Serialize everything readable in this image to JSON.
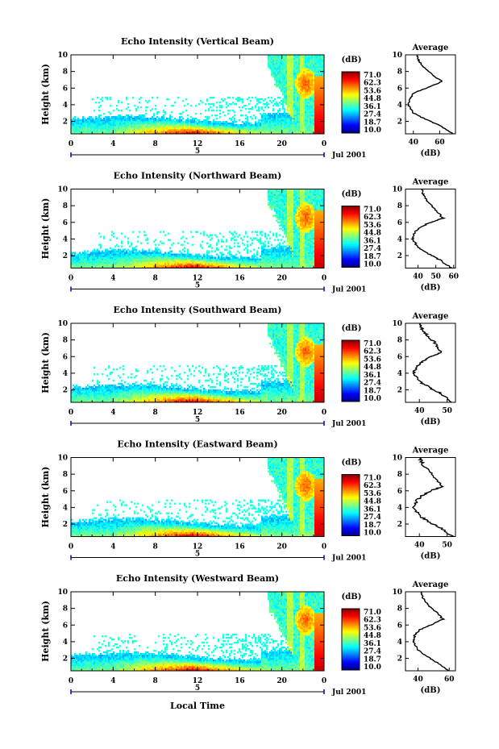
{
  "figure": {
    "x_axis_title": "Local Time",
    "date_label": "Jul 2001",
    "date_marker": "5",
    "colorbar_unit": "(dB)",
    "colorbar_levels": [
      "71.0",
      "62.3",
      "53.6",
      "44.8",
      "36.1",
      "27.4",
      "18.7",
      "10.0"
    ],
    "colorbar_colors": [
      "#e0100a",
      "#ff6a10",
      "#ffcc30",
      "#a8f040",
      "#40e0e0",
      "#30a0ff",
      "#2050e0",
      "#3020a0"
    ],
    "average_title": "Average",
    "average_xlabel": "(dB)",
    "echo_color_scale": "jet",
    "missing_data_color": "#ffffff"
  },
  "chart_data": [
    {
      "type": "heatmap",
      "title": "Echo Intensity (Vertical Beam)",
      "ylabel": "Height (km)",
      "xticks": [
        "0",
        "4",
        "8",
        "12",
        "16",
        "20",
        "0"
      ],
      "yticks": [
        "2",
        "4",
        "6",
        "8",
        "10"
      ],
      "xlim": [
        0,
        24
      ],
      "ylim": [
        0.5,
        10
      ],
      "average_profile": {
        "xticks": [
          "40",
          "60"
        ],
        "yticks": [
          "2",
          "4",
          "6",
          "8",
          "10"
        ],
        "xlim": [
          34,
          72
        ],
        "ylim": [
          0.5,
          10
        ],
        "intensity_db": [
          70,
          60,
          50,
          40,
          36,
          38,
          40,
          50,
          62,
          55,
          48,
          44,
          43
        ],
        "height_km": [
          0.5,
          1.5,
          2.2,
          3.0,
          4.0,
          4.8,
          5.4,
          6.0,
          6.8,
          7.5,
          8.5,
          9.3,
          10
        ]
      }
    },
    {
      "type": "heatmap",
      "title": "Echo Intensity (Northward Beam)",
      "ylabel": "Height (km)",
      "xticks": [
        "0",
        "4",
        "8",
        "12",
        "16",
        "20",
        "0"
      ],
      "yticks": [
        "2",
        "4",
        "6",
        "8",
        "10"
      ],
      "xlim": [
        0,
        24
      ],
      "ylim": [
        0.5,
        10
      ],
      "average_profile": {
        "xticks": [
          "40",
          "50",
          "60"
        ],
        "yticks": [
          "2",
          "4",
          "6",
          "8",
          "10"
        ],
        "xlim": [
          33,
          61
        ],
        "ylim": [
          0.5,
          10
        ],
        "intensity_db": [
          59,
          52,
          46,
          40,
          37,
          38,
          41,
          47,
          54,
          50,
          45,
          43,
          42
        ],
        "height_km": [
          0.5,
          1.5,
          2.2,
          3.0,
          4.0,
          4.8,
          5.4,
          6.0,
          6.5,
          7.5,
          8.5,
          9.3,
          10
        ]
      }
    },
    {
      "type": "heatmap",
      "title": "Echo Intensity (Southward Beam)",
      "ylabel": "Height (km)",
      "xticks": [
        "0",
        "4",
        "8",
        "12",
        "16",
        "20",
        "0"
      ],
      "yticks": [
        "2",
        "4",
        "6",
        "8",
        "10"
      ],
      "xlim": [
        0,
        24
      ],
      "ylim": [
        0.5,
        10
      ],
      "average_profile": {
        "xticks": [
          "40",
          "50"
        ],
        "yticks": [
          "2",
          "4",
          "6",
          "8",
          "10"
        ],
        "xlim": [
          35,
          53
        ],
        "ylim": [
          0.5,
          10
        ],
        "intensity_db": [
          52,
          48,
          44,
          40,
          38,
          39,
          41,
          44,
          48,
          46,
          43,
          41,
          40
        ],
        "height_km": [
          0.5,
          1.5,
          2.2,
          3.0,
          4.0,
          4.8,
          5.4,
          6.0,
          6.5,
          7.5,
          8.5,
          9.3,
          10
        ]
      }
    },
    {
      "type": "heatmap",
      "title": "Echo Intensity (Eastward Beam)",
      "ylabel": "Height (km)",
      "xticks": [
        "0",
        "4",
        "8",
        "12",
        "16",
        "20",
        "0"
      ],
      "yticks": [
        "2",
        "4",
        "6",
        "8",
        "10"
      ],
      "xlim": [
        0,
        24
      ],
      "ylim": [
        0.5,
        10
      ],
      "average_profile": {
        "xticks": [
          "40",
          "50"
        ],
        "yticks": [
          "2",
          "4",
          "6",
          "8",
          "10"
        ],
        "xlim": [
          35,
          53
        ],
        "ylim": [
          0.5,
          10
        ],
        "intensity_db": [
          52,
          48,
          44,
          40,
          38,
          39,
          41,
          44,
          48,
          46,
          43,
          41,
          40
        ],
        "height_km": [
          0.5,
          1.5,
          2.2,
          3.0,
          4.0,
          4.8,
          5.4,
          6.0,
          6.5,
          7.5,
          8.5,
          9.3,
          10
        ]
      }
    },
    {
      "type": "heatmap",
      "title": "Echo Intensity (Westward Beam)",
      "ylabel": "Height (km)",
      "xticks": [
        "0",
        "4",
        "8",
        "12",
        "16",
        "20",
        "0"
      ],
      "yticks": [
        "2",
        "4",
        "6",
        "8",
        "10"
      ],
      "xlim": [
        0,
        24
      ],
      "ylim": [
        0.5,
        10
      ],
      "average_profile": {
        "xticks": [
          "40",
          "60"
        ],
        "yticks": [
          "2",
          "4",
          "6",
          "8",
          "10"
        ],
        "xlim": [
          32,
          64
        ],
        "ylim": [
          0.5,
          10
        ],
        "intensity_db": [
          60,
          52,
          46,
          40,
          37,
          38,
          41,
          48,
          56,
          52,
          46,
          43,
          42
        ],
        "height_km": [
          0.5,
          1.5,
          2.2,
          3.0,
          4.0,
          4.8,
          5.4,
          6.0,
          6.7,
          7.5,
          8.5,
          9.3,
          10
        ]
      }
    }
  ]
}
